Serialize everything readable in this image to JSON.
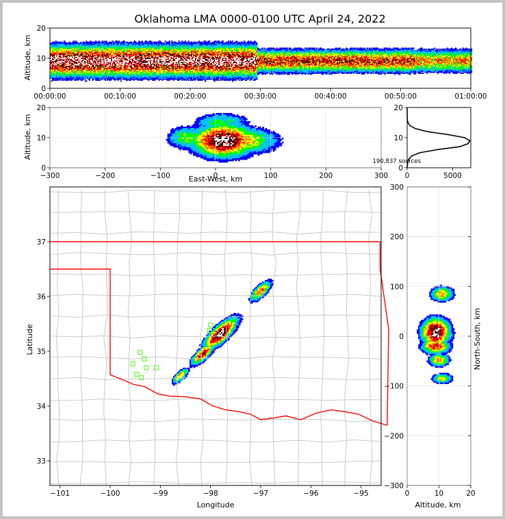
{
  "chart_data": {
    "type": "heatmap",
    "title": "Oklahoma LMA 0000-0100 UTC April 24, 2022",
    "colormap": [
      "#0000ff",
      "#00c0ff",
      "#00ff00",
      "#ffff00",
      "#ff8000",
      "#ff0000",
      "#b00000",
      "#000000",
      "#ffffff"
    ],
    "time_height": {
      "xlabel": "",
      "ylabel": "Altitude, km",
      "xlim": [
        0,
        60
      ],
      "ylim": [
        0,
        20
      ],
      "x_ticks": [
        0,
        10,
        20,
        30,
        40,
        50,
        60
      ],
      "x_tick_labels": [
        "00:00:00",
        "00:10:00",
        "00:20:00",
        "00:30:00",
        "00:40:00",
        "00:50:00",
        "01:00:00"
      ],
      "y_ticks": [
        0,
        10,
        20
      ],
      "y_tick_labels": [
        "0",
        "10",
        "20"
      ],
      "core_altitude_km": 9,
      "segments": [
        {
          "t0": 0,
          "t1": 29.5,
          "depth_km": 7,
          "peak": 1.0
        },
        {
          "t0": 29.5,
          "t1": 52,
          "depth_km": 5,
          "peak": 0.72
        },
        {
          "t0": 52,
          "t1": 60,
          "depth_km": 5,
          "peak": 0.55
        }
      ]
    },
    "ew_height": {
      "xlabel": "East-West, km",
      "ylabel": "Altitude, km",
      "xlim": [
        -300,
        300
      ],
      "ylim": [
        0,
        20
      ],
      "x_ticks": [
        -300,
        -200,
        -100,
        0,
        100,
        200,
        300
      ],
      "x_tick_labels": [
        "−300",
        "−200",
        "−100",
        "0",
        "100",
        "200",
        "300"
      ],
      "y_ticks": [
        0,
        10,
        20
      ],
      "y_tick_labels": [
        "0",
        "10",
        "20"
      ],
      "blobs": [
        {
          "x": 15,
          "z": 9,
          "sx": 45,
          "sz": 4.2,
          "peak": 1.0
        },
        {
          "x": 40,
          "z": 9,
          "sx": 55,
          "sz": 3.5,
          "peak": 0.55
        },
        {
          "x": -50,
          "z": 10,
          "sx": 30,
          "sz": 3.0,
          "peak": 0.35
        },
        {
          "x": 10,
          "z": 15,
          "sx": 40,
          "sz": 2.5,
          "peak": 0.3
        }
      ]
    },
    "altitude_histogram": {
      "xlim": [
        0,
        7000
      ],
      "ylim": [
        0,
        20
      ],
      "x_ticks": [
        0,
        5000
      ],
      "x_tick_labels": [
        "0",
        "5000"
      ],
      "y_ticks": [
        0,
        10,
        20
      ],
      "y_tick_labels": [
        "0",
        "10",
        "20"
      ],
      "annotation": "190,837 sources",
      "profile": [
        {
          "alt": 0,
          "count": 0
        },
        {
          "alt": 1,
          "count": 30
        },
        {
          "alt": 2,
          "count": 80
        },
        {
          "alt": 3,
          "count": 200
        },
        {
          "alt": 4,
          "count": 550
        },
        {
          "alt": 5,
          "count": 1400
        },
        {
          "alt": 6,
          "count": 3300
        },
        {
          "alt": 7,
          "count": 5800
        },
        {
          "alt": 8,
          "count": 6700
        },
        {
          "alt": 9,
          "count": 6900
        },
        {
          "alt": 10,
          "count": 6300
        },
        {
          "alt": 11,
          "count": 4500
        },
        {
          "alt": 12,
          "count": 2200
        },
        {
          "alt": 13,
          "count": 900
        },
        {
          "alt": 14,
          "count": 300
        },
        {
          "alt": 15,
          "count": 80
        },
        {
          "alt": 16,
          "count": 20
        },
        {
          "alt": 17,
          "count": 5
        },
        {
          "alt": 18,
          "count": 1
        },
        {
          "alt": 20,
          "count": 0
        }
      ]
    },
    "plan_view": {
      "xlabel": "Longitude",
      "ylabel": "Latitude",
      "xlim": [
        -101.2,
        -94.6
      ],
      "ylim": [
        32.55,
        38.0
      ],
      "x_ticks": [
        -101,
        -100,
        -99,
        -98,
        -97,
        -96,
        -95
      ],
      "x_tick_labels": [
        "−101",
        "−100",
        "−99",
        "−98",
        "−97",
        "−96",
        "−95"
      ],
      "y_ticks": [
        33,
        34,
        35,
        36,
        37
      ],
      "y_tick_labels": [
        "33",
        "34",
        "35",
        "36",
        "37"
      ],
      "storms": [
        {
          "lon": -98.6,
          "lat": 34.55,
          "s_along": 0.16,
          "s_cross": 0.06,
          "peak": 0.5
        },
        {
          "lon": -98.15,
          "lat": 34.95,
          "s_along": 0.22,
          "s_cross": 0.08,
          "peak": 0.75
        },
        {
          "lon": -97.8,
          "lat": 35.32,
          "s_along": 0.32,
          "s_cross": 0.11,
          "peak": 1.0
        },
        {
          "lon": -97.0,
          "lat": 36.1,
          "s_along": 0.2,
          "s_cross": 0.08,
          "peak": 0.6
        }
      ],
      "stations": [
        {
          "lon": -98.0,
          "lat": 35.48
        },
        {
          "lon": -98.02,
          "lat": 35.38
        },
        {
          "lon": -99.4,
          "lat": 34.98
        },
        {
          "lon": -99.32,
          "lat": 34.86
        },
        {
          "lon": -99.55,
          "lat": 34.77
        },
        {
          "lon": -99.28,
          "lat": 34.7
        },
        {
          "lon": -99.08,
          "lat": 34.7
        },
        {
          "lon": -99.47,
          "lat": 34.58
        },
        {
          "lon": -99.38,
          "lat": 34.52
        }
      ],
      "oklahoma_border": [
        [
          -101.2,
          37.0
        ],
        [
          -94.62,
          37.0
        ],
        [
          -94.62,
          36.5
        ],
        [
          -94.45,
          35.4
        ],
        [
          -94.48,
          33.65
        ],
        [
          -94.75,
          33.72
        ],
        [
          -95.05,
          33.85
        ],
        [
          -95.35,
          33.9
        ],
        [
          -95.6,
          33.93
        ],
        [
          -95.9,
          33.87
        ],
        [
          -96.2,
          33.75
        ],
        [
          -96.5,
          33.82
        ],
        [
          -96.75,
          33.78
        ],
        [
          -97.0,
          33.75
        ],
        [
          -97.2,
          33.85
        ],
        [
          -97.45,
          33.9
        ],
        [
          -97.7,
          33.93
        ],
        [
          -97.95,
          34.0
        ],
        [
          -98.2,
          34.13
        ],
        [
          -98.5,
          34.17
        ],
        [
          -98.8,
          34.18
        ],
        [
          -99.05,
          34.22
        ],
        [
          -99.3,
          34.35
        ],
        [
          -99.55,
          34.4
        ],
        [
          -99.8,
          34.5
        ],
        [
          -100.0,
          34.57
        ],
        [
          -100.0,
          36.5
        ],
        [
          -101.2,
          36.5
        ]
      ]
    },
    "ns_height": {
      "xlabel": "Altitude, km",
      "ylabel": "North-South, km",
      "xlim": [
        0,
        20
      ],
      "ylim": [
        -300,
        300
      ],
      "x_ticks": [
        0,
        10,
        20
      ],
      "x_tick_labels": [
        "0",
        "10",
        "20"
      ],
      "y_ticks": [
        -300,
        -200,
        -100,
        0,
        100,
        200,
        300
      ],
      "y_tick_labels": [
        "−300",
        "−200",
        "−100",
        "0",
        "100",
        "200",
        "300"
      ],
      "blobs": [
        {
          "y": 85,
          "z": 11,
          "sy": 12,
          "sz": 2.8,
          "peak": 0.5
        },
        {
          "y": 8,
          "z": 9,
          "sy": 22,
          "sz": 3.5,
          "peak": 1.0
        },
        {
          "y": -20,
          "z": 9,
          "sy": 12,
          "sz": 3.5,
          "peak": 0.7
        },
        {
          "y": -48,
          "z": 10,
          "sy": 10,
          "sz": 2.5,
          "peak": 0.55
        },
        {
          "y": -85,
          "z": 11,
          "sy": 8,
          "sz": 2.5,
          "peak": 0.45
        }
      ]
    }
  }
}
